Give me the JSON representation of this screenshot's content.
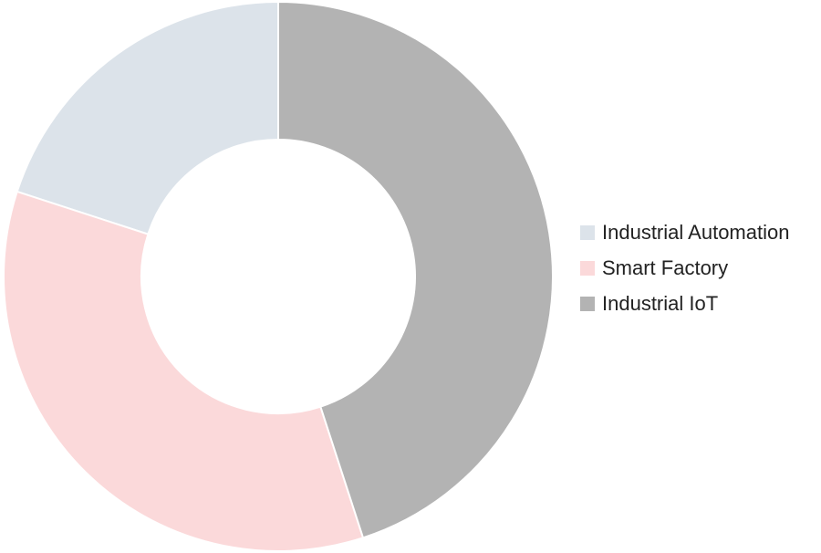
{
  "chart_data": {
    "type": "pie",
    "donut": true,
    "legend_position": "right",
    "series": [
      {
        "name": "Industrial Automation",
        "value": 20,
        "color": "#dce3ea"
      },
      {
        "name": "Smart Factory",
        "value": 35,
        "color": "#fbd9da"
      },
      {
        "name": "Industrial IoT",
        "value": 45,
        "color": "#b3b3b3"
      }
    ]
  }
}
